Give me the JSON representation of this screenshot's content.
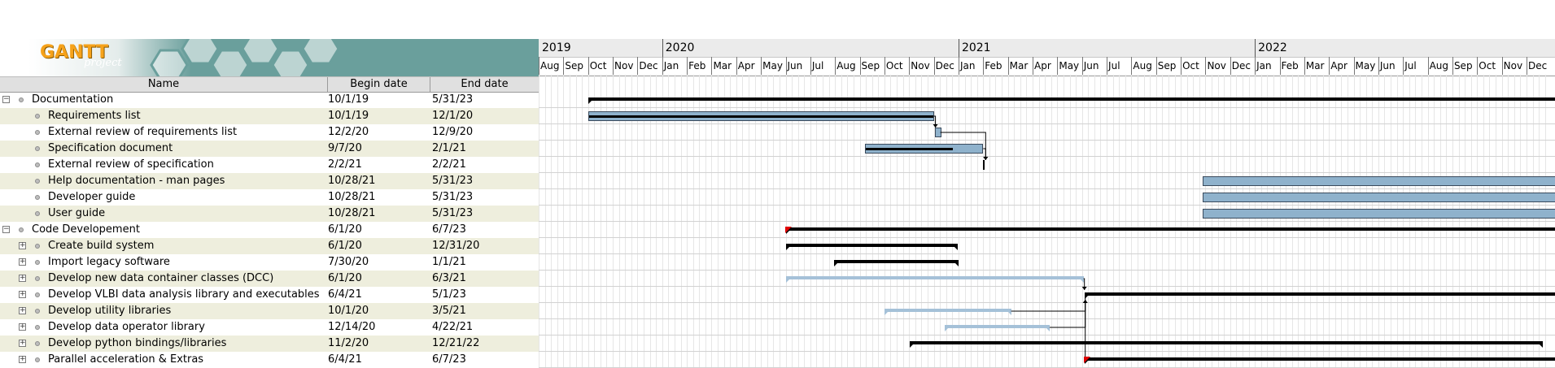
{
  "logo": {
    "wordmark": "GANTT",
    "subtitle": "project"
  },
  "columns": {
    "name": "Name",
    "begin": "Begin date",
    "end": "End date"
  },
  "timeline": {
    "years": [
      "2019",
      "2020",
      "2021",
      "2022"
    ],
    "months": [
      "Aug",
      "Sep",
      "Oct",
      "Nov",
      "Dec",
      "Jan",
      "Feb",
      "Mar",
      "Apr",
      "May",
      "Jun",
      "Jul",
      "Aug",
      "Sep",
      "Oct",
      "Nov",
      "Dec",
      "Jan",
      "Feb",
      "Mar",
      "Apr",
      "May",
      "Jun",
      "Jul",
      "Aug",
      "Sep",
      "Oct",
      "Nov",
      "Dec",
      "Jan",
      "Feb",
      "Mar",
      "Apr",
      "May",
      "Jun",
      "Jul",
      "Aug",
      "Sep",
      "Oct",
      "Nov",
      "Dec"
    ]
  },
  "tasks": [
    {
      "name": "Documentation",
      "begin": "10/1/19",
      "end": "5/31/23",
      "level": 0,
      "expander": "−",
      "kind": "summary"
    },
    {
      "name": "Requirements list",
      "begin": "10/1/19",
      "end": "12/1/20",
      "level": 1,
      "expander": "",
      "kind": "task"
    },
    {
      "name": "External review of requirements list",
      "begin": "12/2/20",
      "end": "12/9/20",
      "level": 1,
      "expander": "",
      "kind": "task"
    },
    {
      "name": "Specification document",
      "begin": "9/7/20",
      "end": "2/1/21",
      "level": 1,
      "expander": "",
      "kind": "task"
    },
    {
      "name": "External review of specification",
      "begin": "2/2/21",
      "end": "2/2/21",
      "level": 1,
      "expander": "",
      "kind": "milestone"
    },
    {
      "name": "Help documentation - man pages",
      "begin": "10/28/21",
      "end": "5/31/23",
      "level": 1,
      "expander": "",
      "kind": "task"
    },
    {
      "name": "Developer guide",
      "begin": "10/28/21",
      "end": "5/31/23",
      "level": 1,
      "expander": "",
      "kind": "task"
    },
    {
      "name": "User guide",
      "begin": "10/28/21",
      "end": "5/31/23",
      "level": 1,
      "expander": "",
      "kind": "task"
    },
    {
      "name": "Code Developement",
      "begin": "6/1/20",
      "end": "6/7/23",
      "level": 0,
      "expander": "−",
      "kind": "summary"
    },
    {
      "name": "Create build system",
      "begin": "6/1/20",
      "end": "12/31/20",
      "level": 1,
      "expander": "+",
      "kind": "summary"
    },
    {
      "name": "Import legacy software",
      "begin": "7/30/20",
      "end": "1/1/21",
      "level": 1,
      "expander": "+",
      "kind": "summary"
    },
    {
      "name": "Develop new data container classes (DCC)",
      "begin": "6/1/20",
      "end": "6/3/21",
      "level": 1,
      "expander": "+",
      "kind": "lite"
    },
    {
      "name": "Develop VLBI data analysis library and executables",
      "begin": "6/4/21",
      "end": "5/1/23",
      "level": 1,
      "expander": "+",
      "kind": "summary"
    },
    {
      "name": "Develop utility libraries",
      "begin": "10/1/20",
      "end": "3/5/21",
      "level": 1,
      "expander": "+",
      "kind": "lite"
    },
    {
      "name": "Develop data operator library",
      "begin": "12/14/20",
      "end": "4/22/21",
      "level": 1,
      "expander": "+",
      "kind": "lite"
    },
    {
      "name": "Develop python bindings/libraries",
      "begin": "11/2/20",
      "end": "12/21/22",
      "level": 1,
      "expander": "+",
      "kind": "summary"
    },
    {
      "name": "Parallel acceleration & Extras",
      "begin": "6/4/21",
      "end": "6/7/23",
      "level": 1,
      "expander": "+",
      "kind": "summary"
    }
  ],
  "colors": {
    "task": "#8fb2cc",
    "summary": "#000000",
    "lite": "#a5c1d8",
    "alt_row": "#eeeedd",
    "critical": "#e00000",
    "logo_bg": "#6a9f9c"
  }
}
